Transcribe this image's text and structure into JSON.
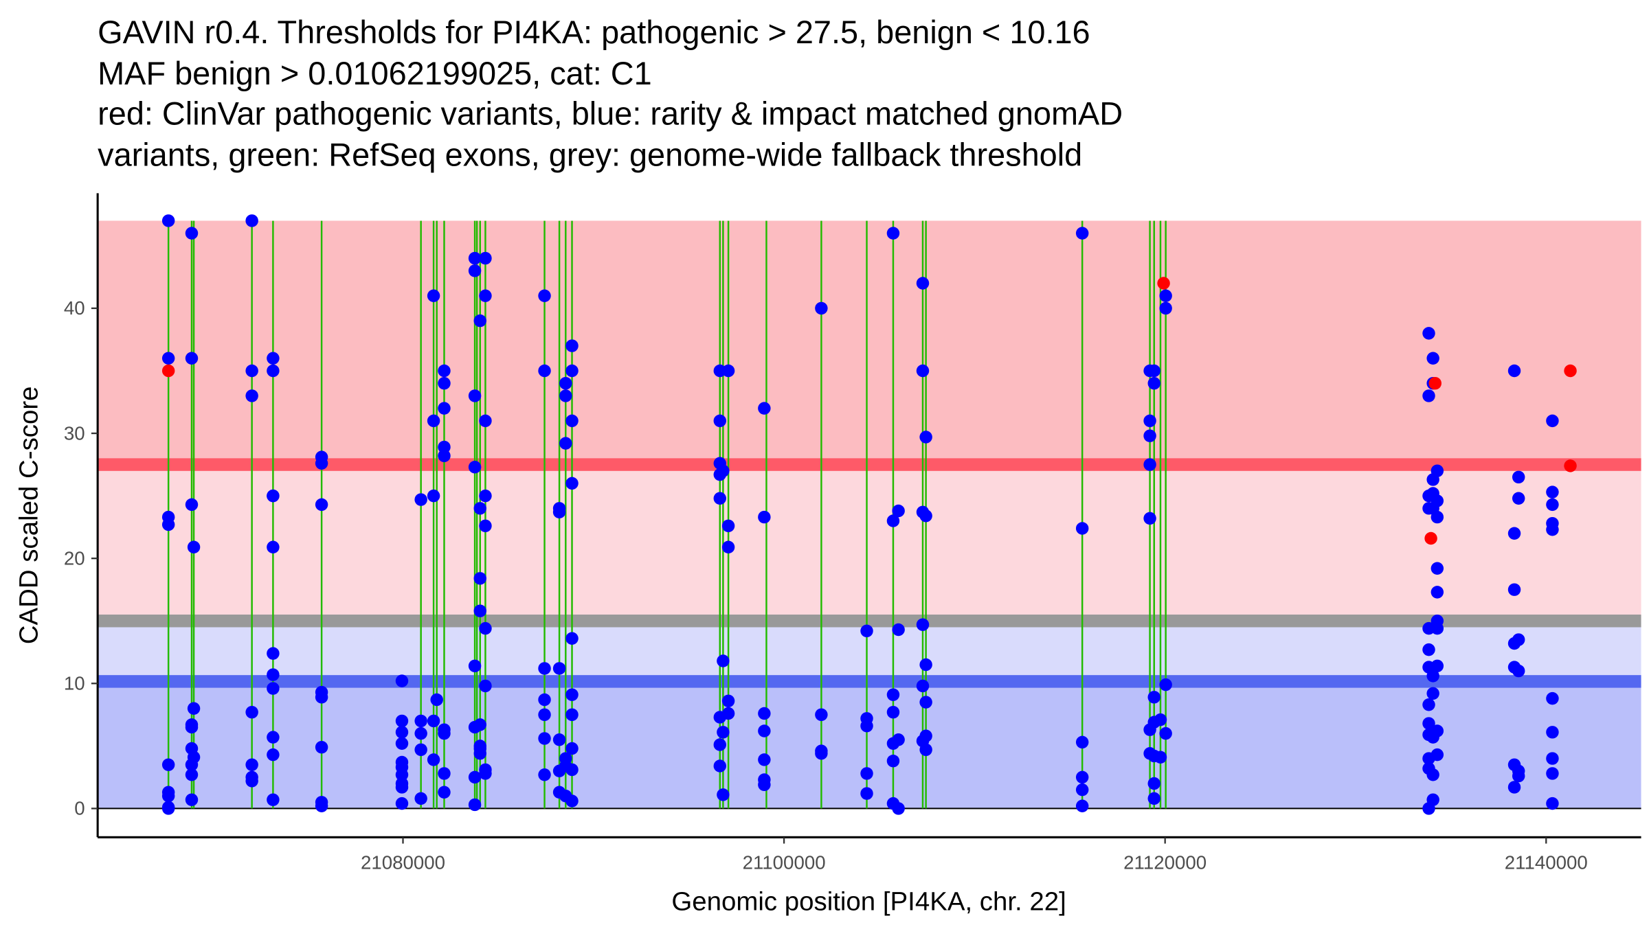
{
  "chart_data": {
    "type": "scatter",
    "title_lines": [
      "GAVIN r0.4. Thresholds for PI4KA: pathogenic > 27.5, benign < 10.16",
      "MAF benign > 0.01062199025, cat: C1",
      "red: ClinVar pathogenic variants, blue: rarity & impact matched gnomAD",
      "variants, green: RefSeq exons, grey: genome-wide fallback threshold"
    ],
    "xlabel": "Genomic position [PI4KA, chr. 22]",
    "ylabel": "CADD scaled C-score",
    "xlim": [
      21063975,
      21144987
    ],
    "ylim": [
      -2.3,
      49.2
    ],
    "xticks": [
      21080000,
      21100000,
      21120000,
      21140000
    ],
    "xtick_labels": [
      "21080000",
      "21100000",
      "21120000",
      "21140000"
    ],
    "yticks": [
      0,
      10,
      20,
      30,
      40
    ],
    "ytick_labels": [
      "0",
      "10",
      "20",
      "30",
      "40"
    ],
    "grid": false,
    "thresholds": {
      "pathogenic": 27.5,
      "benign": 10.16,
      "fallback": 15.0,
      "band_top": 47
    },
    "colors": {
      "pathogenic_zone": "#fcbcc1",
      "pathogenic_line": "#fe5a68",
      "mid_high_zone": "#fdd8dd",
      "fallback_line": "#999999",
      "mid_low_zone": "#d9dbfc",
      "benign_line": "#5468f0",
      "benign_zone": "#babffa",
      "exon": "#22bb00",
      "gnomad": "#0000ff",
      "clinvar": "#ff0000"
    },
    "exons": [
      21067690,
      21068910,
      21069021,
      21072071,
      21073180,
      21075730,
      21080943,
      21081608,
      21081774,
      21082163,
      21083771,
      21083882,
      21084048,
      21084325,
      21087430,
      21088207,
      21088539,
      21088872,
      21096635,
      21096801,
      21097079,
      21099075,
      21101958,
      21104343,
      21105729,
      21107281,
      21107448,
      21115654,
      21119203,
      21119425,
      21119758,
      21120035
    ],
    "series": [
      {
        "name": "gnomAD",
        "color_key": "gnomad",
        "columns": [
          {
            "x": 21067690,
            "y": [
              47,
              36,
              23.3,
              22.7,
              3.5,
              1.3,
              1.0,
              0.1,
              0.0
            ]
          },
          {
            "x": 21068910,
            "y": [
              46,
              36,
              24.3,
              6.7,
              6.5,
              4.8,
              3.5,
              2.7,
              0.7
            ]
          },
          {
            "x": 21069021,
            "y": [
              20.9,
              8.0,
              4.1
            ]
          },
          {
            "x": 21072071,
            "y": [
              47,
              35,
              33,
              7.7,
              3.5,
              2.5,
              2.2
            ]
          },
          {
            "x": 21073180,
            "y": [
              36,
              35,
              25,
              25,
              20.9,
              12.4,
              10.7,
              9.6,
              5.7,
              4.3,
              0.7
            ]
          },
          {
            "x": 21075730,
            "y": [
              28.1,
              27.6,
              24.3,
              9.3,
              8.9,
              4.9,
              0.5,
              0.2
            ]
          },
          {
            "x": 21079945,
            "y": [
              10.2,
              7.0,
              6.1,
              5.2,
              3.7,
              3.3,
              2.7,
              2.0,
              1.7,
              0.4
            ]
          },
          {
            "x": 21080943,
            "y": [
              24.7,
              7.0,
              6.0,
              4.7,
              0.8
            ]
          },
          {
            "x": 21081608,
            "y": [
              41,
              31,
              25,
              7.0,
              3.9
            ]
          },
          {
            "x": 21081774,
            "y": [
              8.7
            ]
          },
          {
            "x": 21082163,
            "y": [
              35,
              34,
              32,
              28.9,
              28.2,
              6.3,
              6.0,
              2.8,
              1.3
            ]
          },
          {
            "x": 21083771,
            "y": [
              44,
              43,
              33,
              27.3,
              11.4,
              6.5,
              2.5,
              0.3
            ]
          },
          {
            "x": 21084048,
            "y": [
              39,
              24,
              18.4,
              15.8,
              6.7,
              5.0,
              4.8,
              4.4
            ]
          },
          {
            "x": 21084325,
            "y": [
              44,
              41,
              31,
              25,
              22.6,
              14.4,
              9.8,
              3.1,
              2.8
            ]
          },
          {
            "x": 21087430,
            "y": [
              41,
              35,
              11.2,
              8.7,
              7.5,
              5.6,
              2.7
            ]
          },
          {
            "x": 21088207,
            "y": [
              24,
              23.7,
              11.2,
              5.5,
              3.0,
              1.3
            ]
          },
          {
            "x": 21088539,
            "y": [
              34,
              33,
              29.2,
              4.0,
              3.4,
              1.0
            ]
          },
          {
            "x": 21088872,
            "y": [
              37,
              35,
              31,
              26,
              13.6,
              9.1,
              7.5,
              4.8,
              3.1,
              0.6
            ]
          },
          {
            "x": 21096635,
            "y": [
              35,
              31,
              27.6,
              26.7,
              24.8,
              7.3,
              5.1,
              3.4
            ]
          },
          {
            "x": 21096801,
            "y": [
              27,
              11.8,
              6.1,
              1.1
            ]
          },
          {
            "x": 21097079,
            "y": [
              35,
              22.6,
              20.9,
              8.6,
              7.6
            ]
          },
          {
            "x": 21098964,
            "y": [
              32,
              23.3,
              7.6,
              6.2,
              3.9,
              2.3,
              1.9
            ]
          },
          {
            "x": 21101958,
            "y": [
              40,
              7.5,
              4.6,
              4.4
            ]
          },
          {
            "x": 21104343,
            "y": [
              14.2,
              7.2,
              6.6,
              2.8,
              1.2
            ]
          },
          {
            "x": 21105729,
            "y": [
              46,
              23,
              9.1,
              7.7,
              5.2,
              3.8,
              0.4
            ]
          },
          {
            "x": 21106006,
            "y": [
              23.8,
              14.3,
              5.5,
              0.0
            ]
          },
          {
            "x": 21107281,
            "y": [
              42,
              35,
              23.7,
              14.7,
              9.8,
              5.4
            ]
          },
          {
            "x": 21107448,
            "y": [
              29.7,
              23.4,
              11.5,
              8.5,
              5.8,
              4.7
            ]
          },
          {
            "x": 21115654,
            "y": [
              46,
              22.4,
              5.3,
              2.5,
              1.5,
              0.2
            ]
          },
          {
            "x": 21119203,
            "y": [
              35,
              31,
              29.8,
              27.5,
              23.2,
              6.3,
              4.4
            ]
          },
          {
            "x": 21119425,
            "y": [
              35,
              34,
              8.9,
              6.9,
              4.2,
              2.0,
              0.8
            ]
          },
          {
            "x": 21119758,
            "y": [
              7.1,
              4.1
            ]
          },
          {
            "x": 21120035,
            "y": [
              41,
              40,
              9.9,
              6.0
            ]
          },
          {
            "x": 21133842,
            "y": [
              38,
              33,
              25,
              24,
              14.4,
              12.7,
              11.3,
              8.3,
              6.8,
              5.9,
              4.0,
              3.2,
              0.0
            ]
          },
          {
            "x": 21134064,
            "y": [
              36,
              34,
              26.3,
              25.2,
              24,
              10.6,
              9.2,
              5.7,
              2.7,
              0.7
            ]
          },
          {
            "x": 21134286,
            "y": [
              27,
              24.6,
              23.3,
              19.2,
              17.3,
              15.0,
              14.4,
              11.4,
              6.2,
              4.3
            ]
          },
          {
            "x": 21138333,
            "y": [
              35,
              22,
              17.5,
              13.2,
              11.3,
              3.5,
              1.7
            ]
          },
          {
            "x": 21138555,
            "y": [
              26.5,
              24.8,
              13.5,
              11.0,
              3.0,
              2.6
            ]
          },
          {
            "x": 21140330,
            "y": [
              31,
              25.3,
              24.3,
              22.8,
              22.3,
              8.8,
              6.1,
              4.0,
              2.8,
              0.4
            ]
          }
        ]
      },
      {
        "name": "ClinVar pathogenic",
        "color_key": "clinvar",
        "columns": [
          {
            "x": 21067690,
            "y": [
              35
            ]
          },
          {
            "x": 21119924,
            "y": [
              42
            ]
          },
          {
            "x": 21134175,
            "y": [
              34
            ]
          },
          {
            "x": 21133953,
            "y": [
              21.6
            ]
          },
          {
            "x": 21141272,
            "y": [
              35,
              27.4
            ]
          }
        ]
      }
    ]
  }
}
